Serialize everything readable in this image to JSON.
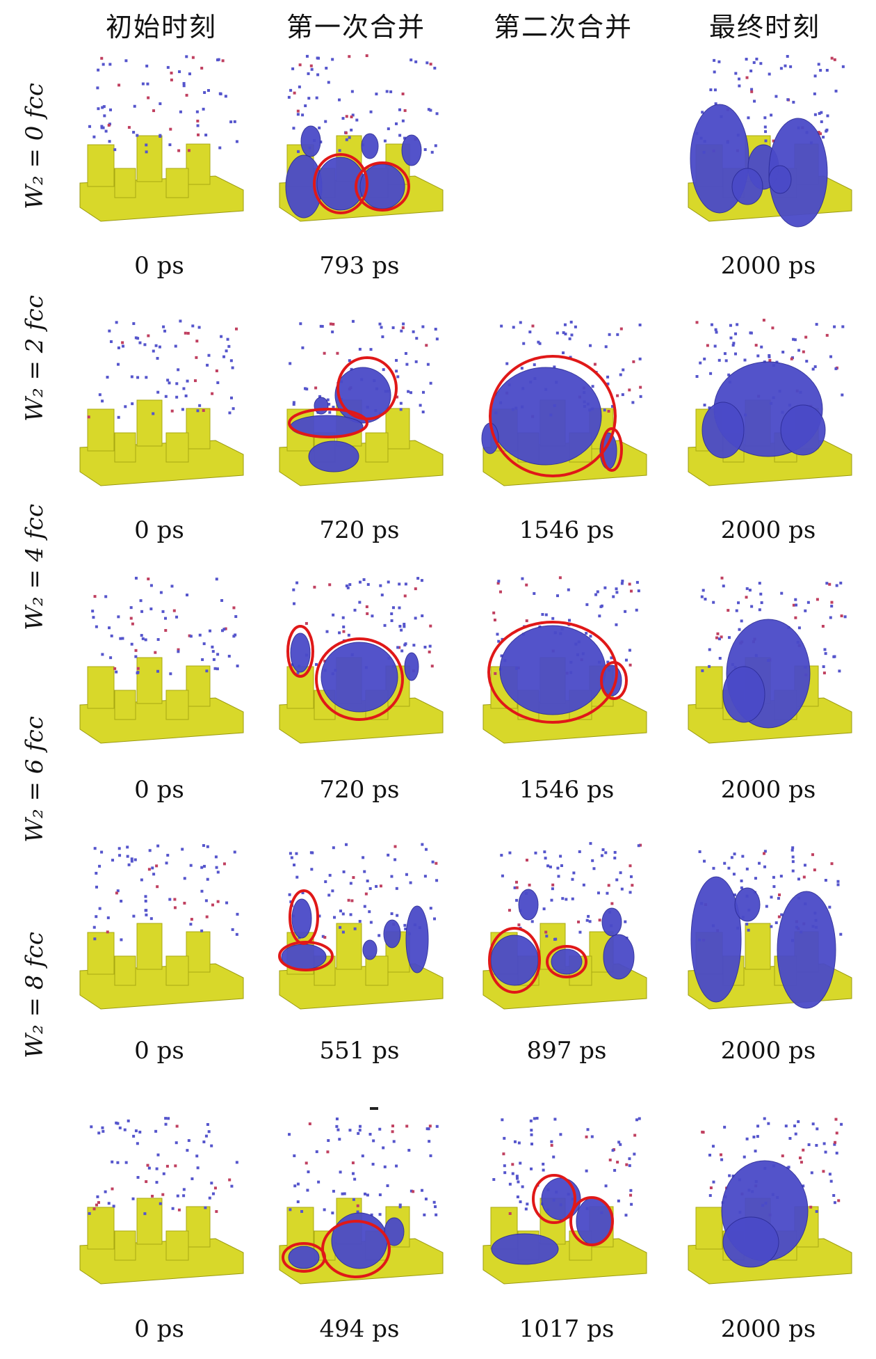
{
  "headers": [
    "初始时刻",
    "第一次合并",
    "第二次合并",
    "最终时刻"
  ],
  "rows": [
    {
      "label": "W₂ = 0 fcc",
      "times": [
        "0 ps",
        "793 ps",
        "",
        "2000 ps"
      ]
    },
    {
      "label": "W₂ = 2 fcc",
      "times": [
        "0 ps",
        "720 ps",
        "1546 ps",
        "2000 ps"
      ]
    },
    {
      "label": "W₂ = 4 fcc",
      "times": [
        "0 ps",
        "720 ps",
        "1546 ps",
        "2000 ps"
      ]
    },
    {
      "label": "W₂ = 6 fcc",
      "times": [
        "0 ps",
        "551 ps",
        "897 ps",
        "2000 ps"
      ]
    },
    {
      "label": "W₂ = 8 fcc",
      "times": [
        "0 ps",
        "494 ps",
        "1017 ps",
        "2000 ps"
      ]
    }
  ],
  "colors": {
    "substrate": "#d8d82a",
    "cluster": "#4a4ac8",
    "highlight": "#e01818",
    "atom": "#5555cc"
  }
}
